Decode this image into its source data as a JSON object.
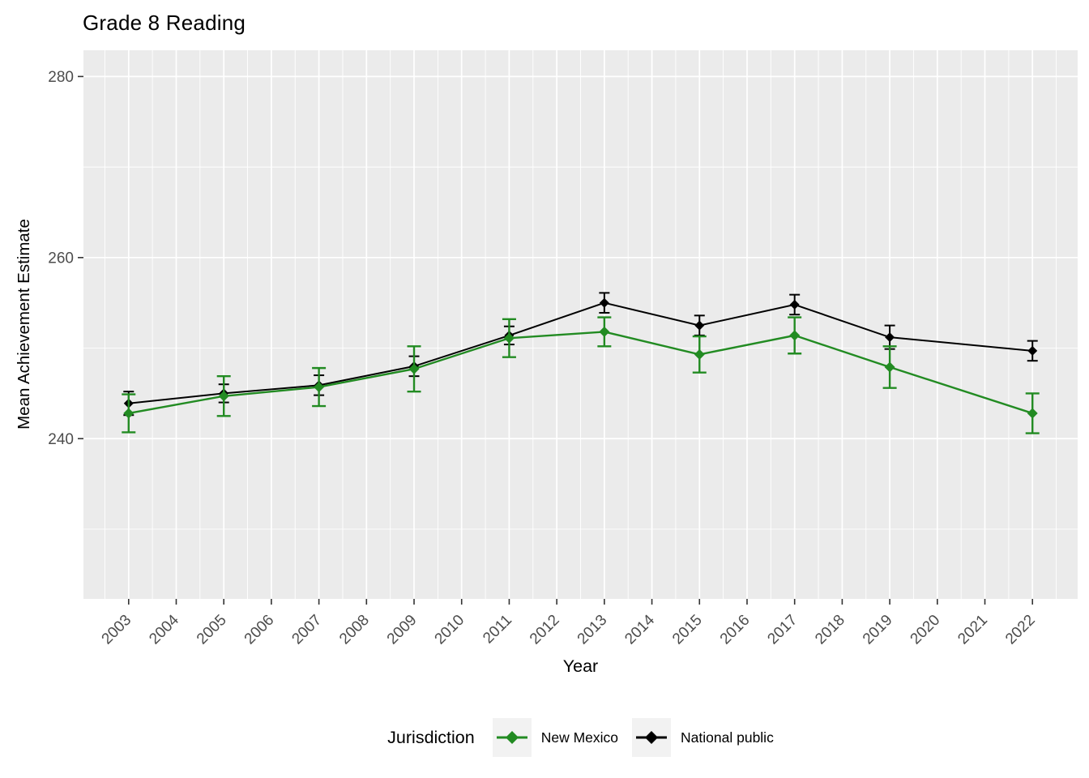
{
  "title": "Grade 8 Reading",
  "axes": {
    "x_label": "Year",
    "y_label": "Mean Achievement Estimate"
  },
  "legend": {
    "title": "Jurisdiction"
  },
  "style": {
    "panel_bg": "#EBEBEB",
    "grid_color": "#FFFFFF",
    "tick_color": "#333333",
    "tick_text_color": "#4D4D4D",
    "legend_key_bg": "#F2F2F2",
    "nm_green": "#228B22",
    "national_black": "#000000"
  },
  "chart_data": {
    "type": "line",
    "title": "Grade 8 Reading",
    "xlabel": "Year",
    "ylabel": "Mean Achievement Estimate",
    "legend_title": "Jurisdiction",
    "legend_position": "bottom",
    "grid": true,
    "error_bars": true,
    "marker": "diamond",
    "x": [
      2003,
      2005,
      2007,
      2009,
      2011,
      2013,
      2015,
      2017,
      2019,
      2022
    ],
    "series": [
      {
        "name": "New Mexico",
        "color": "#228B22",
        "values": [
          242.8,
          244.7,
          245.7,
          247.7,
          251.1,
          251.8,
          249.3,
          251.4,
          247.9,
          242.8
        ],
        "ci": [
          2.1,
          2.2,
          2.1,
          2.5,
          2.1,
          1.6,
          2.0,
          2.0,
          2.3,
          2.2
        ]
      },
      {
        "name": "National public",
        "color": "#000000",
        "values": [
          243.9,
          245.0,
          245.9,
          248.0,
          251.4,
          255.0,
          252.5,
          254.8,
          251.2,
          249.7
        ],
        "ci": [
          1.3,
          1.0,
          1.1,
          1.1,
          1.0,
          1.1,
          1.1,
          1.1,
          1.3,
          1.1
        ]
      }
    ],
    "x_ticks": [
      2003,
      2004,
      2005,
      2006,
      2007,
      2008,
      2009,
      2010,
      2011,
      2012,
      2013,
      2014,
      2015,
      2016,
      2017,
      2018,
      2019,
      2020,
      2021,
      2022
    ],
    "y_ticks": [
      240,
      260,
      280
    ],
    "y_minor": [
      230,
      250,
      270
    ],
    "xlim": [
      2002.05,
      2022.95
    ],
    "ylim": [
      222.3,
      282.9
    ]
  }
}
